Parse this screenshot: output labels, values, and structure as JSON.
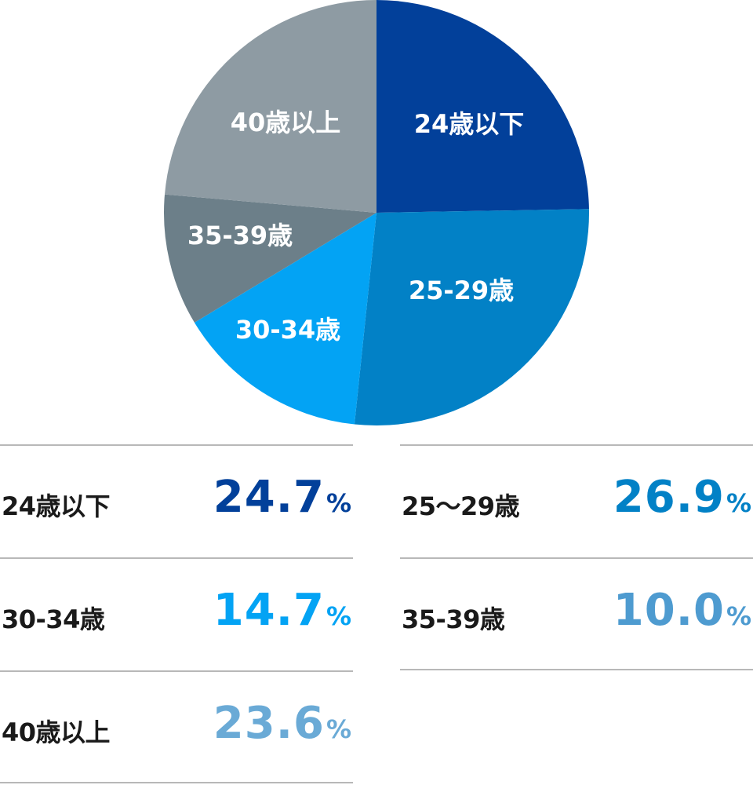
{
  "chart_data": {
    "type": "pie",
    "start": "12 o'clock",
    "direction": "clockwise",
    "slices": [
      {
        "label": "24歳以下",
        "table_label": "24歳以下",
        "value": 24.7,
        "color": "#02409a",
        "value_color": "#02409a"
      },
      {
        "label": "25-29歳",
        "table_label": "25〜29歳",
        "value": 26.9,
        "color": "#0281c6",
        "value_color": "#0281c6"
      },
      {
        "label": "30-34歳",
        "table_label": "30-34歳",
        "value": 14.7,
        "color": "#03a3f4",
        "value_color": "#03a3f4"
      },
      {
        "label": "35-39歳",
        "table_label": "35-39歳",
        "value": 10.0,
        "color": "#6c7f89",
        "value_color": "#4e9bd0"
      },
      {
        "label": "40歳以上",
        "table_label": "40歳以上",
        "value": 23.6,
        "color": "#8e9ba3",
        "value_color": "#6aaad6"
      }
    ],
    "unit": "%"
  }
}
